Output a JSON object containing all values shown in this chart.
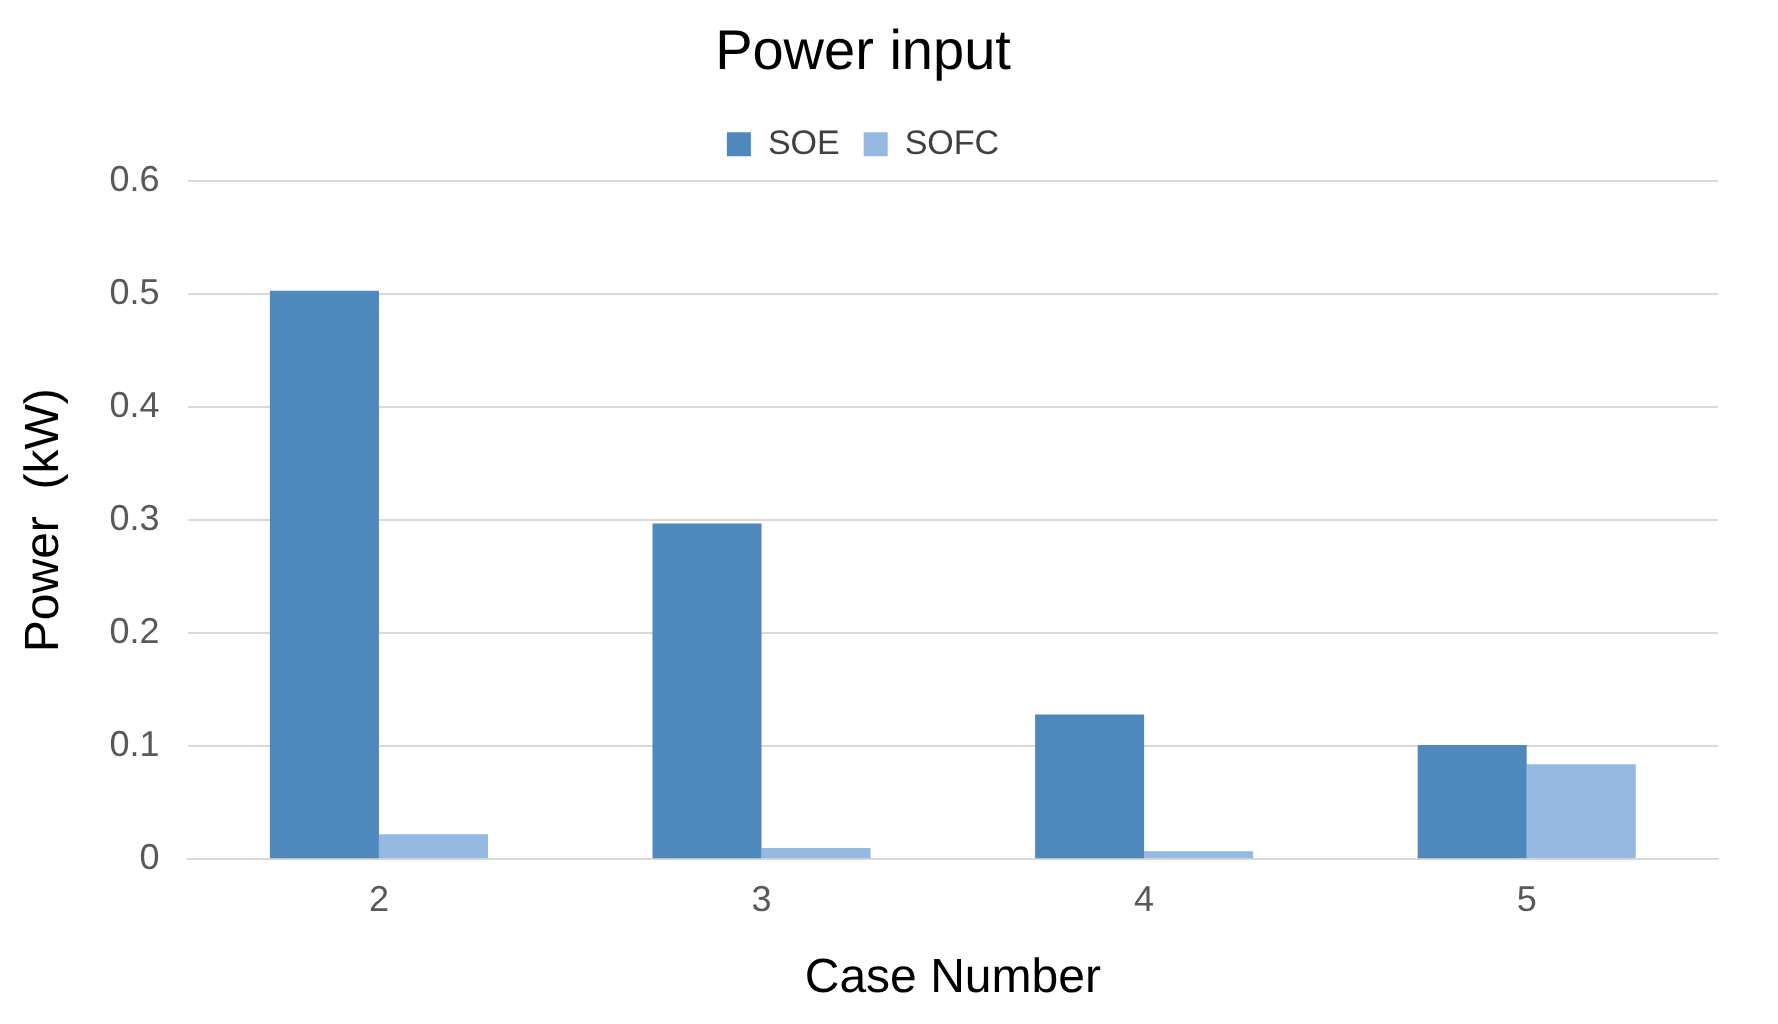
{
  "chart_data": {
    "type": "bar",
    "title": "Power input",
    "xlabel": "Case Number",
    "ylabel": "Power  (kW)",
    "categories": [
      "2",
      "3",
      "4",
      "5"
    ],
    "series": [
      {
        "name": "SOE",
        "color": "#4f88bd",
        "values": [
          0.503,
          0.297,
          0.128,
          0.101
        ]
      },
      {
        "name": "SOFC",
        "color": "#95b9e0",
        "values": [
          0.022,
          0.01,
          0.007,
          0.084
        ]
      }
    ],
    "ylim": [
      0,
      0.6
    ],
    "yticks": [
      0,
      0.1,
      0.2,
      0.3,
      0.4,
      0.5,
      0.6
    ],
    "grid": "y",
    "legend": "top"
  }
}
